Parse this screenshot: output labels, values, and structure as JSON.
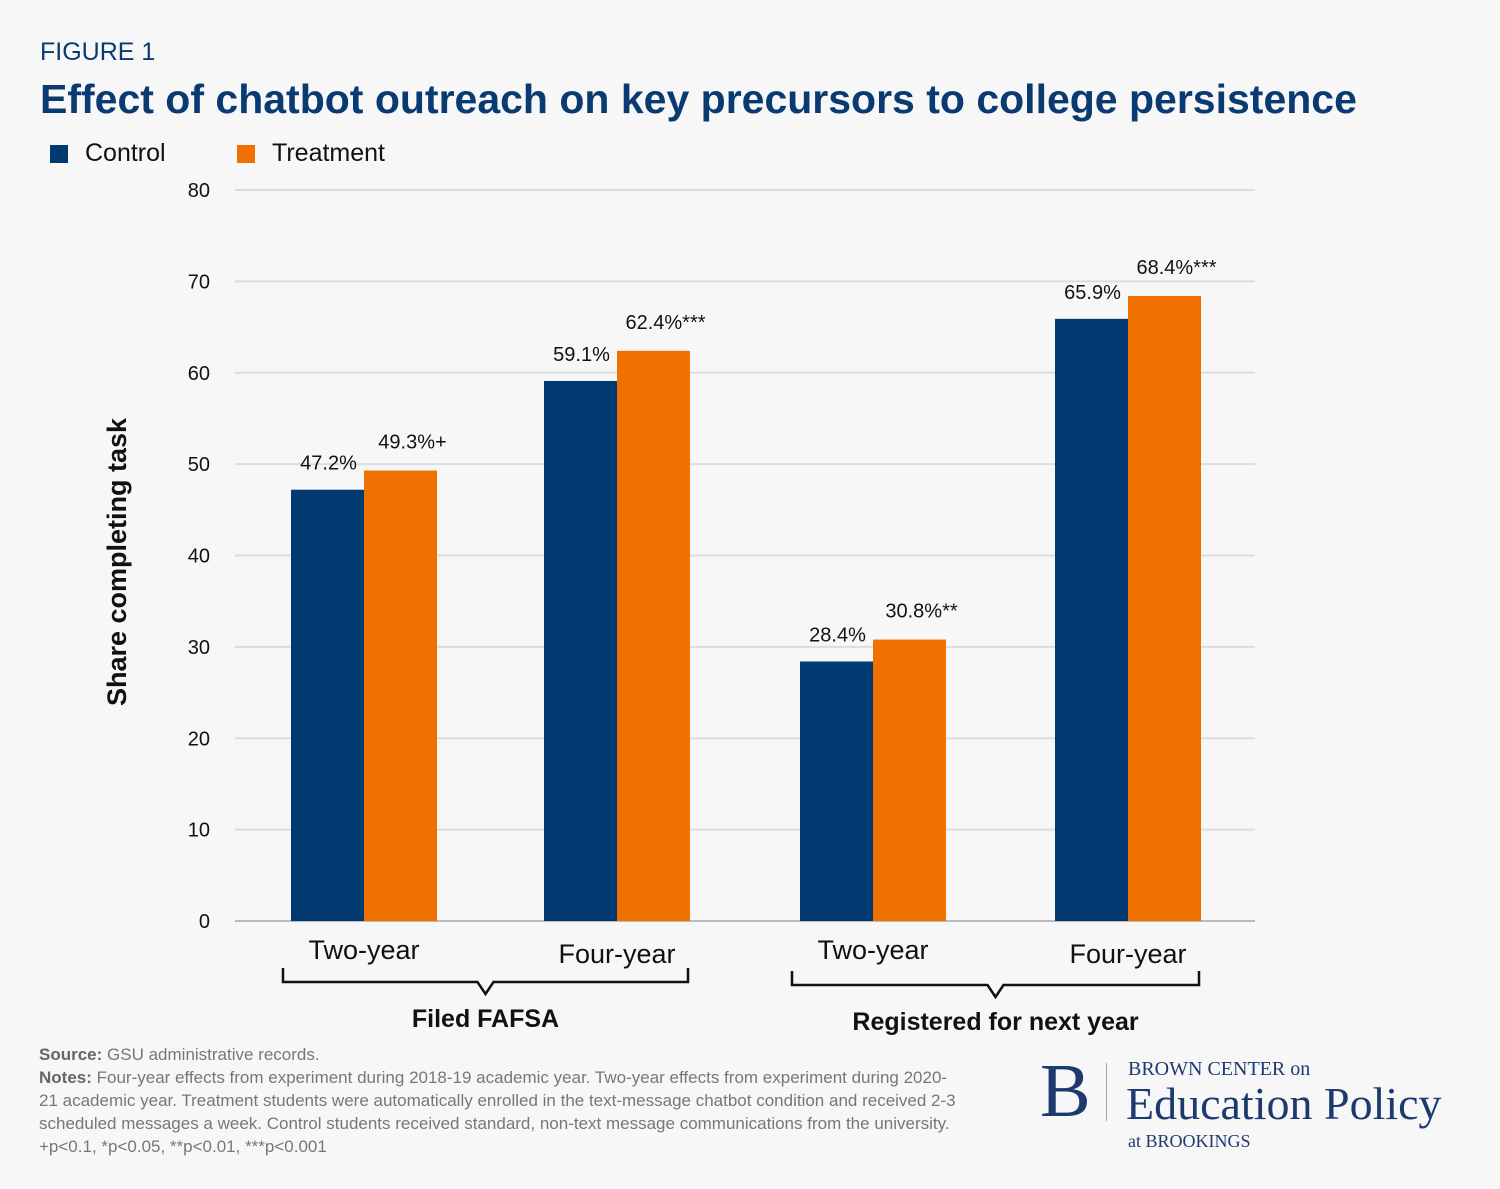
{
  "figure_label": "FIGURE 1",
  "chart_data": {
    "type": "bar",
    "title": "Effect of chatbot outreach on key precursors to college persistence",
    "ylabel": "Share completing task",
    "ylim": [
      0,
      80
    ],
    "yticks": [
      0,
      10,
      20,
      30,
      40,
      50,
      60,
      70,
      80
    ],
    "grid": true,
    "legend_position": "top-left",
    "categories": [
      "Two-year",
      "Four-year",
      "Two-year",
      "Four-year"
    ],
    "groups": [
      {
        "label": "Filed FAFSA",
        "categories": [
          0,
          1
        ]
      },
      {
        "label": "Registered for next year",
        "categories": [
          2,
          3
        ]
      }
    ],
    "series": [
      {
        "name": "Control",
        "color": "#003a70",
        "values": [
          47.2,
          59.1,
          28.4,
          65.9
        ],
        "labels": [
          "47.2%",
          "59.1%",
          "28.4%",
          "65.9%"
        ]
      },
      {
        "name": "Treatment",
        "color": "#f07000",
        "values": [
          49.3,
          62.4,
          30.8,
          68.4
        ],
        "labels": [
          "49.3%+",
          "62.4%***",
          "30.8%**",
          "68.4%***"
        ]
      }
    ]
  },
  "footer": {
    "source_label": "Source:",
    "source_text": "GSU administrative records.",
    "notes_label": "Notes:",
    "notes_text": "Four-year effects from experiment during 2018-19 academic year. Two-year effects from experiment during 2020-21 academic year. Treatment students were automatically enrolled in the text-message chatbot condition and received 2-3 scheduled messages a week. Control students received standard, non-text message communications from the university. +p<0.1, *p<0.05, **p<0.01, ***p<0.001"
  },
  "logo": {
    "letter": "B",
    "line1": "BROWN CENTER on",
    "line2": "Education Policy",
    "line3": "at BROOKINGS"
  }
}
